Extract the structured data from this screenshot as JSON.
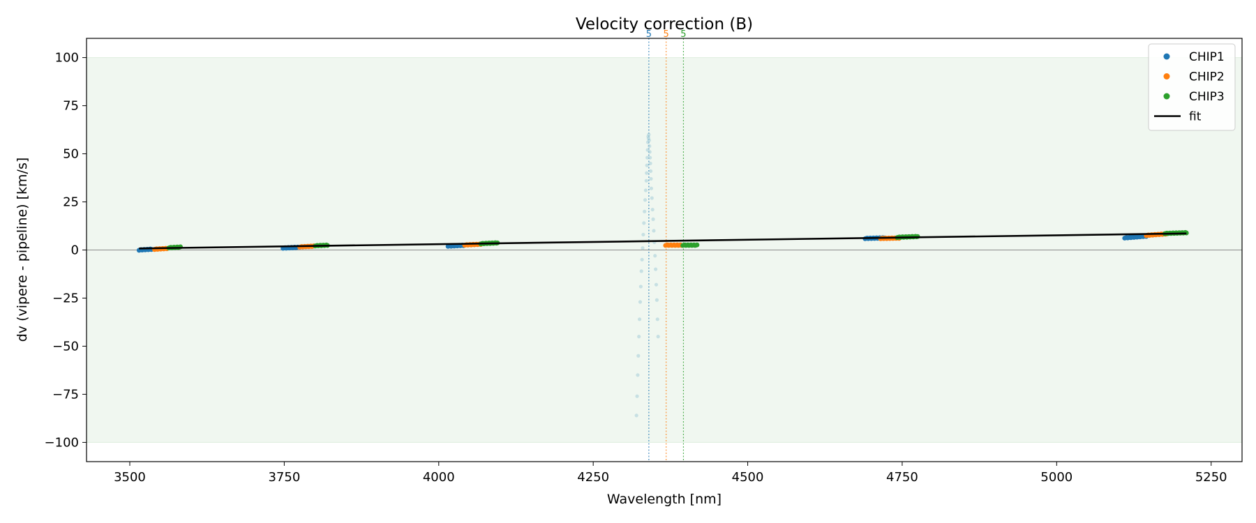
{
  "chart_data": {
    "type": "scatter",
    "title": "Velocity correction (B)",
    "xlabel": "Wavelength [nm]",
    "ylabel": "dv (vipere - pipeline) [km/s]",
    "xlim": [
      3430,
      5300
    ],
    "ylim": [
      -110,
      110
    ],
    "xticks": [
      3500,
      3750,
      4000,
      4250,
      4500,
      4750,
      5000,
      5250
    ],
    "yticks": [
      -100,
      -75,
      -50,
      -25,
      0,
      25,
      50,
      75,
      100
    ],
    "accepted_band": [
      -100,
      100
    ],
    "band_color": "#f0f7f0",
    "zero_line": 0,
    "legend_position": "top-right",
    "legend": [
      {
        "label": "CHIP1",
        "color": "#1f77b4",
        "kind": "dot"
      },
      {
        "label": "CHIP2",
        "color": "#ff7f0e",
        "kind": "dot"
      },
      {
        "label": "CHIP3",
        "color": "#2ca02c",
        "kind": "dot"
      },
      {
        "label": "fit",
        "color": "#000000",
        "kind": "line"
      }
    ],
    "series": [
      {
        "name": "CHIP1",
        "color": "#1f77b4",
        "segments": [
          {
            "x0": 3515,
            "x1": 3535,
            "y0": 0.0,
            "y1": 0.4
          },
          {
            "x0": 3748,
            "x1": 3772,
            "y0": 1.0,
            "y1": 1.4
          },
          {
            "x0": 4015,
            "x1": 4040,
            "y0": 2.0,
            "y1": 2.4
          },
          {
            "x0": 4690,
            "x1": 4722,
            "y0": 6.0,
            "y1": 6.3
          },
          {
            "x0": 5110,
            "x1": 5145,
            "y0": 6.3,
            "y1": 7.2
          }
        ]
      },
      {
        "name": "CHIP2",
        "color": "#ff7f0e",
        "segments": [
          {
            "x0": 3540,
            "x1": 3560,
            "y0": 0.4,
            "y1": 0.8
          },
          {
            "x0": 3775,
            "x1": 3798,
            "y0": 1.6,
            "y1": 2.0
          },
          {
            "x0": 4042,
            "x1": 4068,
            "y0": 2.6,
            "y1": 3.0
          },
          {
            "x0": 4367,
            "x1": 4393,
            "y0": 2.5,
            "y1": 2.5
          },
          {
            "x0": 4715,
            "x1": 4745,
            "y0": 6.0,
            "y1": 6.2
          },
          {
            "x0": 5145,
            "x1": 5178,
            "y0": 7.6,
            "y1": 8.4
          }
        ]
      },
      {
        "name": "CHIP3",
        "color": "#2ca02c",
        "segments": [
          {
            "x0": 3563,
            "x1": 3582,
            "y0": 1.2,
            "y1": 1.5
          },
          {
            "x0": 3800,
            "x1": 3820,
            "y0": 2.2,
            "y1": 2.5
          },
          {
            "x0": 4068,
            "x1": 4095,
            "y0": 3.3,
            "y1": 3.7
          },
          {
            "x0": 4395,
            "x1": 4418,
            "y0": 2.5,
            "y1": 2.5
          },
          {
            "x0": 4742,
            "x1": 4775,
            "y0": 6.6,
            "y1": 7.0
          },
          {
            "x0": 5175,
            "x1": 5210,
            "y0": 8.6,
            "y1": 9.0
          }
        ]
      }
    ],
    "outliers": {
      "color": "#a6cdd8",
      "points": [
        [
          4340,
          60
        ],
        [
          4340.5,
          57
        ],
        [
          4341,
          54
        ],
        [
          4341.5,
          51
        ],
        [
          4342,
          48
        ],
        [
          4342.5,
          45
        ],
        [
          4343,
          41
        ],
        [
          4343.5,
          37
        ],
        [
          4344,
          32
        ],
        [
          4345,
          27
        ],
        [
          4346,
          21
        ],
        [
          4347,
          16
        ],
        [
          4348,
          10
        ],
        [
          4349,
          4
        ],
        [
          4350,
          -3
        ],
        [
          4351,
          -10
        ],
        [
          4352,
          -18
        ],
        [
          4353,
          -26
        ],
        [
          4354,
          -36
        ],
        [
          4355,
          -45
        ],
        [
          4338.5,
          56
        ],
        [
          4338,
          52
        ],
        [
          4337.5,
          48
        ],
        [
          4337,
          44
        ],
        [
          4336.5,
          40
        ],
        [
          4336,
          36
        ],
        [
          4335,
          31
        ],
        [
          4334,
          26
        ],
        [
          4333,
          20
        ],
        [
          4332,
          14
        ],
        [
          4331,
          8
        ],
        [
          4330,
          1
        ],
        [
          4329,
          -5
        ],
        [
          4328,
          -11
        ],
        [
          4327,
          -19
        ],
        [
          4326,
          -27
        ],
        [
          4325,
          -36
        ],
        [
          4324,
          -45
        ],
        [
          4323,
          -55
        ],
        [
          4322,
          -65
        ],
        [
          4321,
          -76
        ],
        [
          4320,
          -86
        ],
        [
          4339,
          59
        ],
        [
          4339.5,
          58
        ]
      ]
    },
    "fit": {
      "x": [
        3515,
        5210
      ],
      "y": [
        0.8,
        8.6
      ],
      "color": "#000000"
    },
    "vertical_markers": [
      {
        "x": 4340,
        "label": "5",
        "color": "#1f77b4"
      },
      {
        "x": 4368,
        "label": "5",
        "color": "#ff7f0e"
      },
      {
        "x": 4396,
        "label": "5",
        "color": "#2ca02c"
      }
    ]
  }
}
